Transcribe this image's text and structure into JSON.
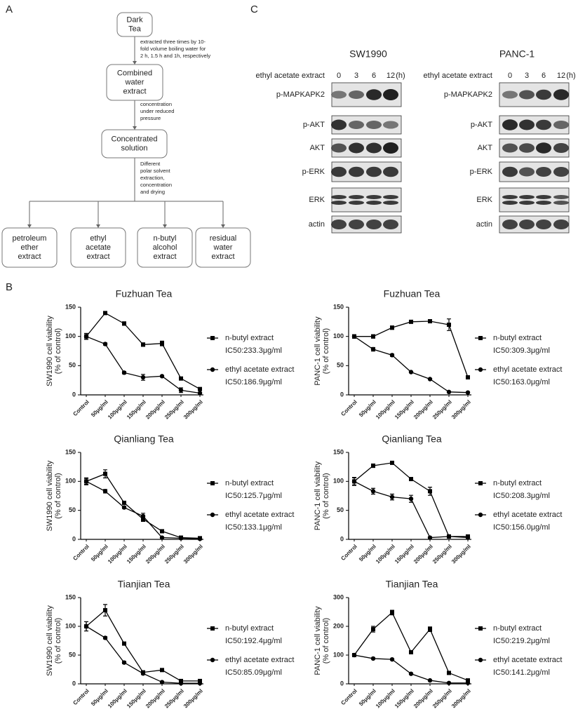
{
  "panels": [
    "A",
    "B",
    "C"
  ],
  "flowchart": {
    "nodes": [
      {
        "lines": [
          "Dark",
          "Tea"
        ]
      },
      {
        "lines": [
          "Combined",
          "water",
          "extract"
        ]
      },
      {
        "lines": [
          "Concentrated",
          "solution"
        ]
      },
      {
        "lines": [
          "petroleum",
          "ether",
          "extract"
        ]
      },
      {
        "lines": [
          "ethyl",
          "acetate",
          "extract"
        ]
      },
      {
        "lines": [
          "n-butyl",
          "alcohol",
          "extract"
        ]
      },
      {
        "lines": [
          "residual",
          "water",
          "extract"
        ]
      }
    ],
    "steps": [
      {
        "lines": [
          "extracted three times by 10-",
          "fold volume boiling water for",
          "2 h, 1.5 h and 1h, respectively"
        ]
      },
      {
        "lines": [
          "concentration",
          "under reduced",
          "pressure"
        ]
      },
      {
        "lines": [
          "Different",
          "polar solvent",
          "extraction,",
          "concentration",
          "and drying"
        ]
      }
    ]
  },
  "blots": [
    {
      "title": "SW1990",
      "treatment": "ethyl acetate extract",
      "lanes": [
        "0",
        "3",
        "6",
        "12"
      ],
      "unit": "(h)",
      "rows": [
        "p-MAPKAPK2",
        "p-AKT",
        "AKT",
        "p-ERK",
        "ERK",
        "actin"
      ]
    },
    {
      "title": "PANC-1",
      "treatment": "ethyl acetate extract",
      "lanes": [
        "0",
        "3",
        "6",
        "12"
      ],
      "unit": "(h)",
      "rows": [
        "p-MAPKAPK2",
        "p-AKT",
        "AKT",
        "p-ERK",
        "ERK",
        "actin"
      ]
    }
  ],
  "chart_data": [
    {
      "type": "line",
      "title": "Fuzhuan Tea",
      "ylabel": [
        "SW1990 cell viability",
        "(% of control)"
      ],
      "categories": [
        "Control",
        "50μg/ml",
        "100μg/ml",
        "150μg/ml",
        "200μg/ml",
        "250μg/ml",
        "300μg/ml"
      ],
      "ylim": [
        0,
        150
      ],
      "yticks": [
        0,
        50,
        100,
        150
      ],
      "legend": "right",
      "series": [
        {
          "name": "n-butyl extract",
          "note": "IC50:233.3μg/ml",
          "marker": "square",
          "color": "#000000",
          "values": [
            100,
            140,
            122,
            86,
            88,
            28,
            10
          ],
          "errors": [
            5,
            1,
            3,
            3,
            4,
            2,
            1
          ]
        },
        {
          "name": "ethyl acetate extract",
          "note": "IC50:186.9μg/ml",
          "marker": "circle",
          "color": "#000000",
          "values": [
            100,
            87,
            38,
            30,
            32,
            8,
            3
          ],
          "errors": [
            5,
            2,
            2,
            5,
            1,
            4,
            1
          ]
        }
      ]
    },
    {
      "type": "line",
      "title": "Fuzhuan Tea",
      "ylabel": [
        "PANC-1 cell viability",
        "(% of control)"
      ],
      "categories": [
        "Control",
        "50μg/ml",
        "100μg/ml",
        "150μg/ml",
        "200μg/ml",
        "250μg/ml",
        "300μg/ml"
      ],
      "ylim": [
        0,
        150
      ],
      "yticks": [
        0,
        50,
        100,
        150
      ],
      "legend": "right",
      "series": [
        {
          "name": "n-butyl extract",
          "note": "IC50:309.3μg/ml",
          "marker": "square",
          "color": "#000000",
          "values": [
            100,
            100,
            115,
            125,
            126,
            120,
            30
          ],
          "errors": [
            3,
            3,
            3,
            1,
            1,
            10,
            1
          ]
        },
        {
          "name": "ethyl acetate extract",
          "note": "IC50:163.0μg/ml",
          "marker": "circle",
          "color": "#000000",
          "values": [
            100,
            78,
            68,
            39,
            27,
            5,
            4
          ],
          "errors": [
            3,
            3,
            2,
            1,
            1,
            1,
            1
          ]
        }
      ]
    },
    {
      "type": "line",
      "title": "Qianliang Tea",
      "ylabel": [
        "SW1990 cell viability",
        "(% of control)"
      ],
      "categories": [
        "Control",
        "50μg/ml",
        "100μg/ml",
        "150μg/ml",
        "200μg/ml",
        "250μg/ml",
        "300μg/ml"
      ],
      "ylim": [
        0,
        150
      ],
      "yticks": [
        0,
        50,
        100,
        150
      ],
      "legend": "right",
      "series": [
        {
          "name": "n-butyl extract",
          "note": "IC50:125.7μg/ml",
          "marker": "square",
          "color": "#000000",
          "values": [
            100,
            113,
            63,
            35,
            14,
            3,
            2
          ],
          "errors": [
            6,
            7,
            2,
            4,
            1,
            1,
            1
          ]
        },
        {
          "name": "ethyl acetate extract",
          "note": "IC50:133.1μg/ml",
          "marker": "circle",
          "color": "#000000",
          "values": [
            100,
            83,
            55,
            40,
            3,
            2,
            1
          ],
          "errors": [
            5,
            3,
            2,
            5,
            1,
            1,
            1
          ]
        }
      ]
    },
    {
      "type": "line",
      "title": "Qianliang Tea",
      "ylabel": [
        "PANC-1 cell viability",
        "(% of control)"
      ],
      "categories": [
        "Control",
        "50μg/ml",
        "100μg/ml",
        "150μg/ml",
        "200μg/ml",
        "250μg/ml",
        "300μg/ml"
      ],
      "ylim": [
        0,
        150
      ],
      "yticks": [
        0,
        50,
        100,
        150
      ],
      "legend": "right",
      "series": [
        {
          "name": "n-butyl extract",
          "note": "IC50:208.3μg/ml",
          "marker": "square",
          "color": "#000000",
          "values": [
            100,
            127,
            132,
            104,
            83,
            5,
            5
          ],
          "errors": [
            6,
            3,
            2,
            2,
            7,
            1,
            1
          ]
        },
        {
          "name": "ethyl acetate extract",
          "note": "IC50:156.0μg/ml",
          "marker": "circle",
          "color": "#000000",
          "values": [
            100,
            83,
            73,
            70,
            3,
            5,
            3
          ],
          "errors": [
            7,
            5,
            5,
            6,
            1,
            1,
            1
          ]
        }
      ]
    },
    {
      "type": "line",
      "title": "Tianjian Tea",
      "ylabel": [
        "SW1990 cell viability",
        "(% of control)"
      ],
      "categories": [
        "Control",
        "50μg/ml",
        "100μg/ml",
        "150μg/ml",
        "200μg/ml",
        "250μg/ml",
        "300μg/ml"
      ],
      "ylim": [
        0,
        150
      ],
      "yticks": [
        0,
        50,
        100,
        150
      ],
      "legend": "right",
      "series": [
        {
          "name": "n-butyl extract",
          "note": "IC50:192.4μg/ml",
          "marker": "square",
          "color": "#000000",
          "values": [
            100,
            128,
            70,
            20,
            24,
            5,
            5
          ],
          "errors": [
            8,
            10,
            2,
            2,
            2,
            1,
            1
          ]
        },
        {
          "name": "ethyl acetate extract",
          "note": "IC50:85.09μg/ml",
          "marker": "circle",
          "color": "#000000",
          "values": [
            100,
            80,
            37,
            18,
            3,
            1,
            1
          ],
          "errors": [
            8,
            2,
            2,
            2,
            1,
            1,
            1
          ]
        }
      ]
    },
    {
      "type": "line",
      "title": "Tianjian Tea",
      "ylabel": [
        "PANC-1 cell viability",
        "(% of control)"
      ],
      "categories": [
        "Control",
        "50μg/ml",
        "100μg/ml",
        "150μg/ml",
        "200μg/ml",
        "250μg/ml",
        "300μg/ml"
      ],
      "ylim": [
        0,
        300
      ],
      "yticks": [
        0,
        100,
        200,
        300
      ],
      "legend": "right",
      "series": [
        {
          "name": "n-butyl extract",
          "note": "IC50:219.2μg/ml",
          "marker": "square",
          "color": "#000000",
          "values": [
            100,
            190,
            248,
            110,
            190,
            38,
            12
          ],
          "errors": [
            5,
            10,
            8,
            3,
            8,
            2,
            2
          ]
        },
        {
          "name": "ethyl acetate extract",
          "note": "IC50:141.2μg/ml",
          "marker": "circle",
          "color": "#000000",
          "values": [
            100,
            88,
            85,
            35,
            12,
            3,
            3
          ],
          "errors": [
            3,
            2,
            2,
            2,
            1,
            1,
            1
          ]
        }
      ]
    }
  ]
}
